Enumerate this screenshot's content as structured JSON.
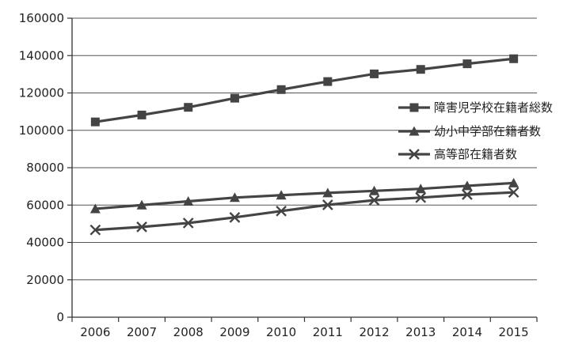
{
  "chart_data": {
    "type": "line",
    "x": [
      "2006",
      "2007",
      "2008",
      "2009",
      "2010",
      "2011",
      "2012",
      "2013",
      "2014",
      "2015"
    ],
    "ylim": [
      0,
      160000
    ],
    "yticks": [
      0,
      20000,
      40000,
      60000,
      80000,
      100000,
      120000,
      140000,
      160000
    ],
    "ytick_labels": [
      "0",
      "20000",
      "40000",
      "60000",
      "80000",
      "100000",
      "120000",
      "140000",
      "160000"
    ],
    "grid": "horizontal",
    "legend_position": "right",
    "line_color": "#444444",
    "series": [
      {
        "name": "障害児学校在籍者総数",
        "marker": "square",
        "values": [
          104500,
          108200,
          112300,
          117200,
          121800,
          126100,
          130200,
          132600,
          135600,
          138300
        ]
      },
      {
        "name": "幼小中学部在籍者数",
        "marker": "triangle",
        "values": [
          58000,
          60000,
          62000,
          64000,
          65300,
          66500,
          67600,
          68700,
          70300,
          71800
        ]
      },
      {
        "name": "高等部在籍者数",
        "marker": "x",
        "values": [
          46700,
          48300,
          50400,
          53400,
          56800,
          60100,
          62600,
          64000,
          65600,
          66800
        ]
      }
    ]
  }
}
